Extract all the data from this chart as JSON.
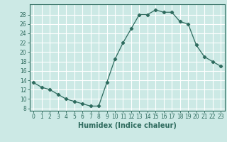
{
  "x": [
    0,
    1,
    2,
    3,
    4,
    5,
    6,
    7,
    8,
    9,
    10,
    11,
    12,
    13,
    14,
    15,
    16,
    17,
    18,
    19,
    20,
    21,
    22,
    23
  ],
  "y": [
    13.5,
    12.5,
    12,
    11,
    10,
    9.5,
    9,
    8.5,
    8.5,
    13.5,
    18.5,
    22,
    25,
    28,
    28,
    29,
    28.5,
    28.5,
    26.5,
    26,
    21.5,
    19,
    18,
    17
  ],
  "line_color": "#2e6b5e",
  "marker": "D",
  "marker_size": 2.2,
  "bg_color": "#cce9e5",
  "grid_color": "#ffffff",
  "xlabel": "Humidex (Indice chaleur)",
  "xlabel_fontsize": 7,
  "xticks": [
    0,
    1,
    2,
    3,
    4,
    5,
    6,
    7,
    8,
    9,
    10,
    11,
    12,
    13,
    14,
    15,
    16,
    17,
    18,
    19,
    20,
    21,
    22,
    23
  ],
  "yticks": [
    8,
    10,
    12,
    14,
    16,
    18,
    20,
    22,
    24,
    26,
    28
  ],
  "ylim": [
    7.5,
    30.2
  ],
  "xlim": [
    -0.5,
    23.5
  ],
  "tick_fontsize": 5.5,
  "linewidth": 0.9
}
